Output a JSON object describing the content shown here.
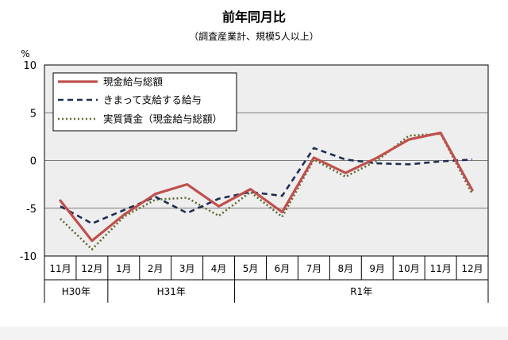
{
  "chart_data": {
    "type": "line",
    "title": "前年同月比",
    "subtitle": "（調査産業計、規模5人以上）",
    "ylabel": "%",
    "ylim": [
      -10,
      10
    ],
    "yticks": [
      "10",
      "5",
      "0",
      "-5",
      "-10"
    ],
    "categories": [
      "11月",
      "12月",
      "1月",
      "2月",
      "3月",
      "4月",
      "5月",
      "6月",
      "7月",
      "8月",
      "9月",
      "10月",
      "11月",
      "12月"
    ],
    "year_groups": [
      {
        "label": "H30年",
        "span": 2
      },
      {
        "label": "H31年",
        "span": 4
      },
      {
        "label": "R1年",
        "span": 8
      }
    ],
    "grid": true,
    "legend_position": "top-left",
    "series": [
      {
        "name": "現金給与総額",
        "color": "#c0504d",
        "style": "solid",
        "values": [
          -4.2,
          -8.4,
          -5.7,
          -3.5,
          -2.5,
          -4.8,
          -3.0,
          -5.4,
          0.3,
          -1.3,
          0.3,
          2.2,
          2.9,
          -3.1
        ]
      },
      {
        "name": "きまって支給する給与",
        "color": "#1f2d50",
        "style": "dash",
        "values": [
          -4.8,
          -6.6,
          -5.2,
          -3.8,
          -5.5,
          -4.0,
          -3.3,
          -3.7,
          1.3,
          0.1,
          -0.3,
          -0.4,
          -0.1,
          0.1
        ]
      },
      {
        "name": "実質賃金（現金給与総額）",
        "color": "#5b6b2f",
        "style": "dot",
        "values": [
          -6.1,
          -9.3,
          -5.9,
          -4.1,
          -3.9,
          -5.8,
          -3.3,
          -5.9,
          0.1,
          -1.7,
          0.0,
          2.6,
          2.8,
          -3.5
        ]
      }
    ]
  }
}
